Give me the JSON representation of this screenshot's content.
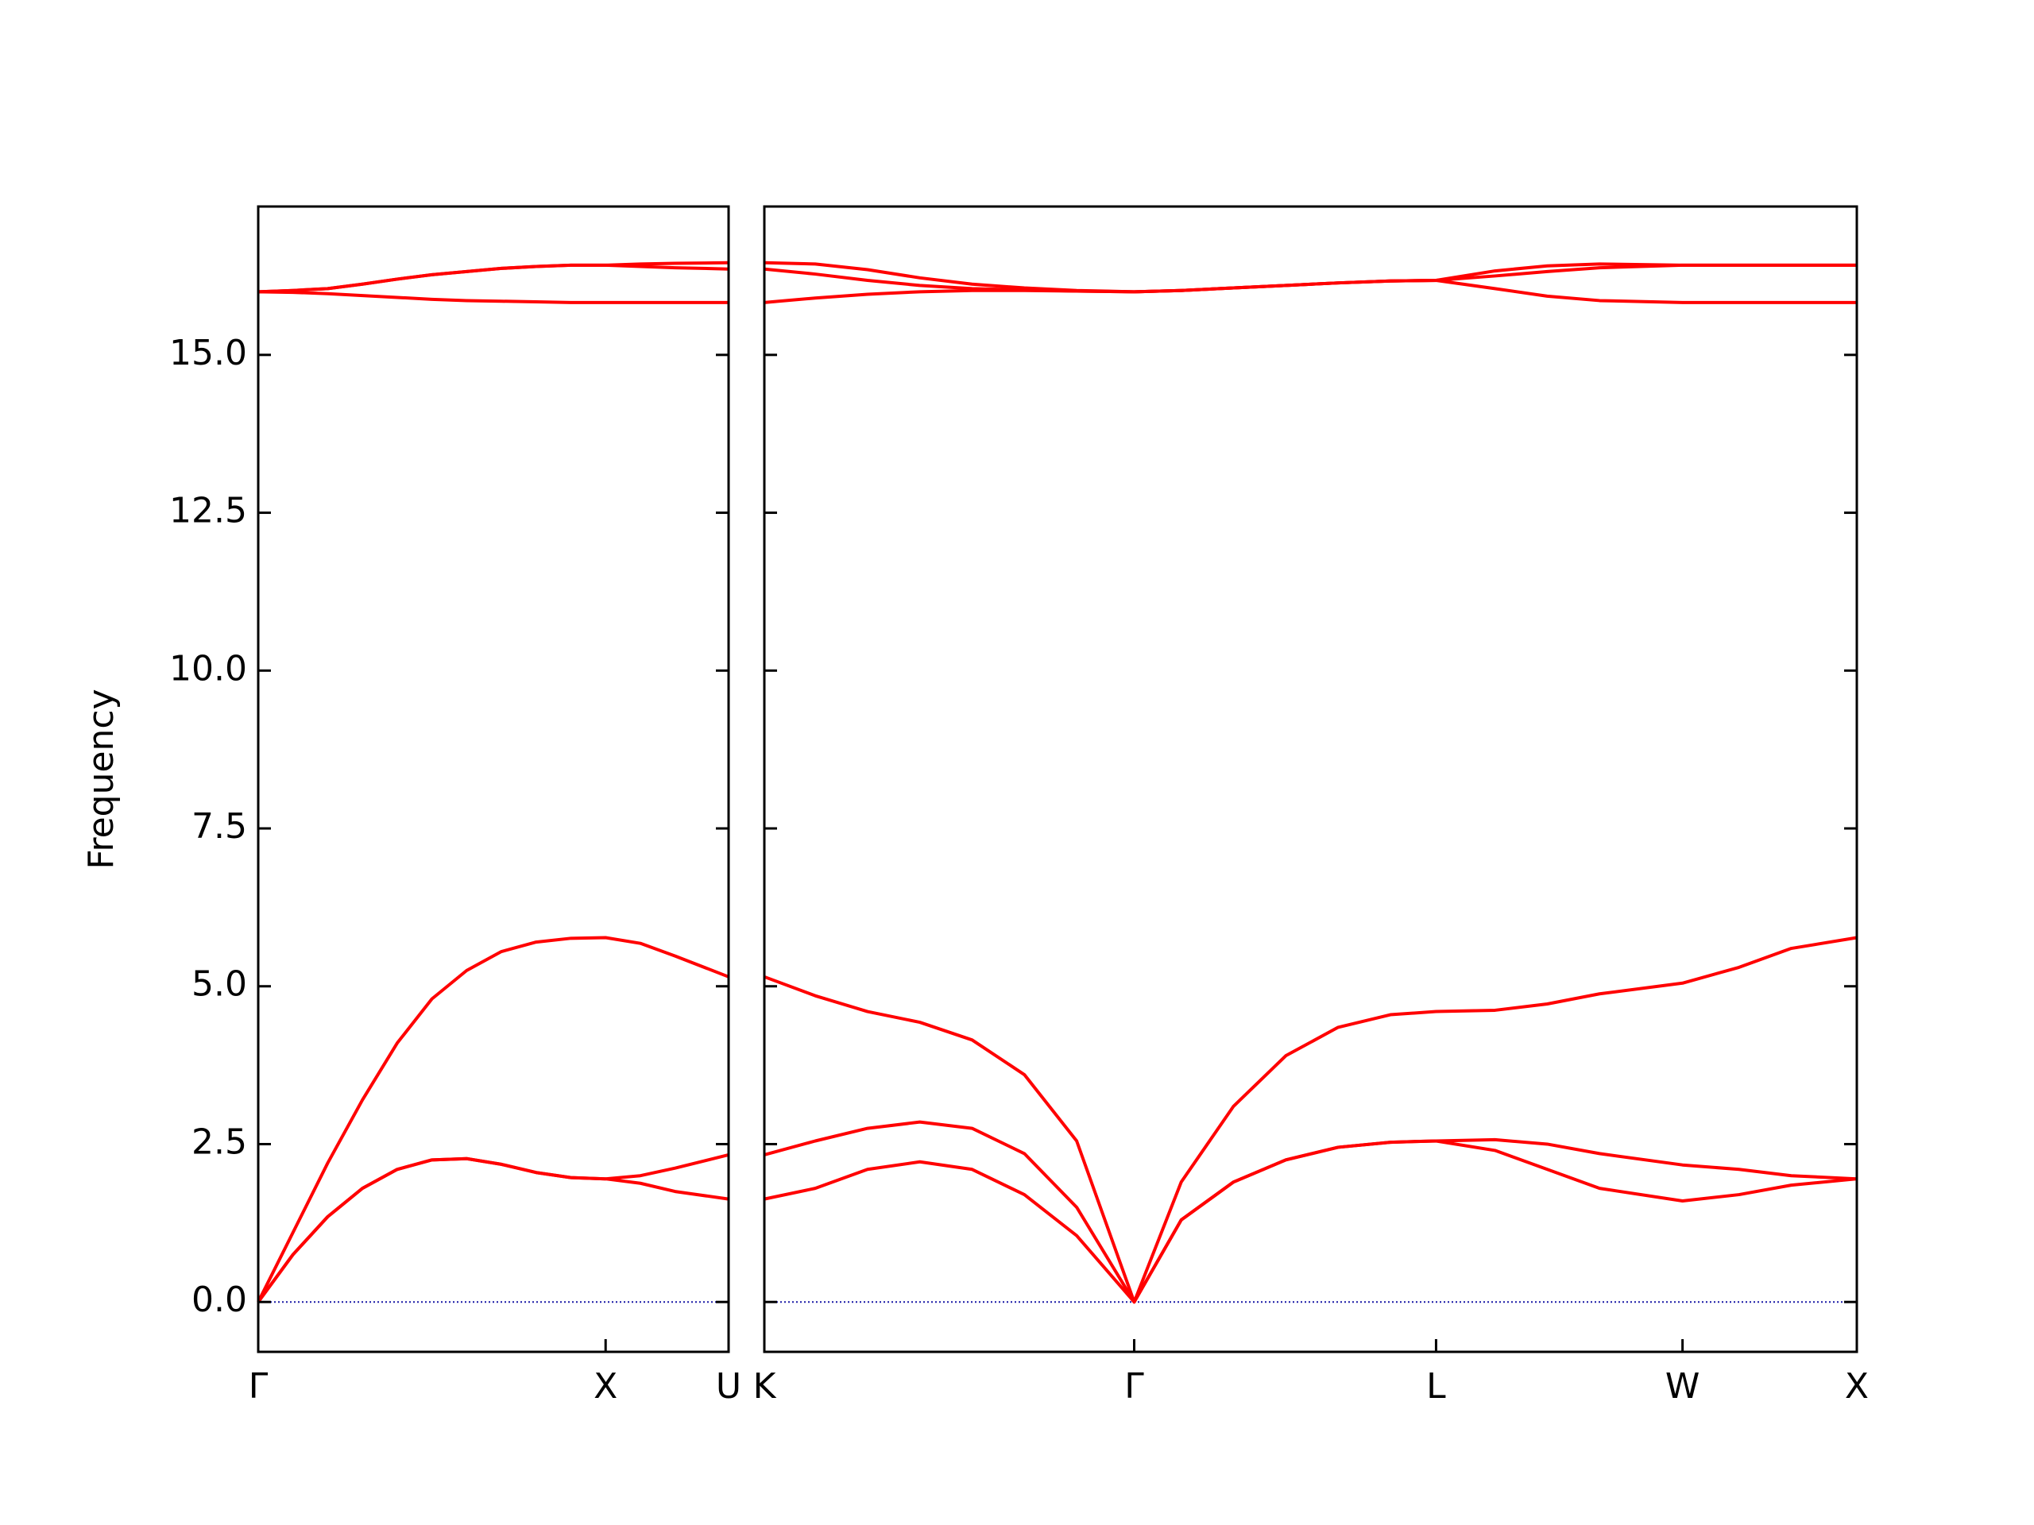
{
  "chart_data": [
    {
      "type": "line",
      "ylabel": "Frequency",
      "xlim": [
        0,
        1.354
      ],
      "ylim": [
        -0.79,
        17.35
      ],
      "yticks": [
        {
          "value": 0,
          "label": "0.0"
        },
        2.5,
        {
          "value": 5,
          "label": "5.0"
        },
        7.5,
        {
          "value": 10,
          "label": "10.0"
        },
        12.5,
        {
          "value": 15,
          "label": "15.0"
        }
      ],
      "xticks": [
        {
          "value": 0,
          "label": "Γ"
        },
        {
          "value": 1.0,
          "label": "X"
        },
        {
          "value": 1.354,
          "label": "U"
        }
      ],
      "zero_line": true,
      "zero_line_color": "#1a1aa6",
      "x": [
        0,
        0.1,
        0.2,
        0.3,
        0.4,
        0.5,
        0.6,
        0.7,
        0.8,
        0.9,
        1.0,
        1.1,
        1.2,
        1.354
      ],
      "series": [
        {
          "color": "#ff0000",
          "values": [
            0,
            0.75,
            1.35,
            1.8,
            2.1,
            2.25,
            2.27,
            2.18,
            2.05,
            1.97,
            1.95,
            1.88,
            1.75,
            1.63
          ]
        },
        {
          "color": "#ff0000",
          "values": [
            0,
            0.75,
            1.35,
            1.8,
            2.1,
            2.25,
            2.27,
            2.18,
            2.05,
            1.97,
            1.95,
            2.0,
            2.12,
            2.33
          ]
        },
        {
          "color": "#ff0000",
          "values": [
            0,
            1.1,
            2.2,
            3.2,
            4.1,
            4.8,
            5.25,
            5.55,
            5.7,
            5.76,
            5.77,
            5.68,
            5.48,
            5.15
          ]
        },
        {
          "color": "#ff0000",
          "values": [
            16.0,
            15.99,
            15.97,
            15.94,
            15.91,
            15.88,
            15.86,
            15.85,
            15.84,
            15.83,
            15.83,
            15.83,
            15.83,
            15.83
          ]
        },
        {
          "color": "#ff0000",
          "values": [
            16.0,
            16.02,
            16.05,
            16.12,
            16.2,
            16.27,
            16.32,
            16.37,
            16.4,
            16.42,
            16.42,
            16.4,
            16.38,
            16.36
          ]
        },
        {
          "color": "#ff0000",
          "values": [
            16.0,
            16.02,
            16.05,
            16.12,
            16.2,
            16.27,
            16.32,
            16.37,
            16.4,
            16.42,
            16.42,
            16.44,
            16.45,
            16.46
          ]
        }
      ]
    },
    {
      "type": "line",
      "xlim": [
        1.354,
        4.488
      ],
      "ylim": [
        -0.79,
        17.35
      ],
      "xticks": [
        {
          "value": 1.354,
          "label": "K"
        },
        {
          "value": 2.415,
          "label": "Γ"
        },
        {
          "value": 3.281,
          "label": "L"
        },
        {
          "value": 3.988,
          "label": "W"
        },
        {
          "value": 4.488,
          "label": "X"
        }
      ],
      "zero_line": true,
      "zero_line_color": "#1a1aa6",
      "x": [
        1.354,
        1.5,
        1.65,
        1.8,
        1.95,
        2.1,
        2.25,
        2.415,
        2.55,
        2.7,
        2.85,
        3.0,
        3.15,
        3.281,
        3.45,
        3.6,
        3.75,
        3.988,
        4.15,
        4.3,
        4.488
      ],
      "series": [
        {
          "color": "#ff0000",
          "values": [
            1.63,
            1.8,
            2.1,
            2.22,
            2.1,
            1.7,
            1.05,
            0,
            1.3,
            1.9,
            2.25,
            2.45,
            2.53,
            2.55,
            2.4,
            2.1,
            1.8,
            1.6,
            1.7,
            1.85,
            1.95
          ]
        },
        {
          "color": "#ff0000",
          "values": [
            2.33,
            2.55,
            2.75,
            2.85,
            2.75,
            2.35,
            1.5,
            0,
            1.3,
            1.9,
            2.25,
            2.45,
            2.53,
            2.55,
            2.57,
            2.5,
            2.35,
            2.17,
            2.1,
            2.0,
            1.95
          ]
        },
        {
          "color": "#ff0000",
          "values": [
            5.15,
            4.85,
            4.6,
            4.43,
            4.15,
            3.6,
            2.55,
            0,
            1.9,
            3.1,
            3.9,
            4.35,
            4.55,
            4.6,
            4.62,
            4.72,
            4.88,
            5.05,
            5.3,
            5.6,
            5.77
          ]
        },
        {
          "color": "#ff0000",
          "values": [
            15.83,
            15.9,
            15.96,
            16.0,
            16.02,
            16.02,
            16.01,
            16.0,
            16.02,
            16.06,
            16.1,
            16.14,
            16.17,
            16.18,
            16.05,
            15.93,
            15.86,
            15.83,
            15.83,
            15.83,
            15.83
          ]
        },
        {
          "color": "#ff0000",
          "values": [
            16.36,
            16.28,
            16.18,
            16.1,
            16.05,
            16.03,
            16.01,
            16.0,
            16.02,
            16.06,
            16.1,
            16.14,
            16.17,
            16.18,
            16.25,
            16.32,
            16.38,
            16.42,
            16.42,
            16.42,
            16.42
          ]
        },
        {
          "color": "#ff0000",
          "values": [
            16.46,
            16.44,
            16.35,
            16.22,
            16.12,
            16.06,
            16.02,
            16.0,
            16.02,
            16.06,
            16.1,
            16.14,
            16.17,
            16.18,
            16.33,
            16.41,
            16.44,
            16.42,
            16.42,
            16.42,
            16.42
          ]
        }
      ]
    }
  ]
}
